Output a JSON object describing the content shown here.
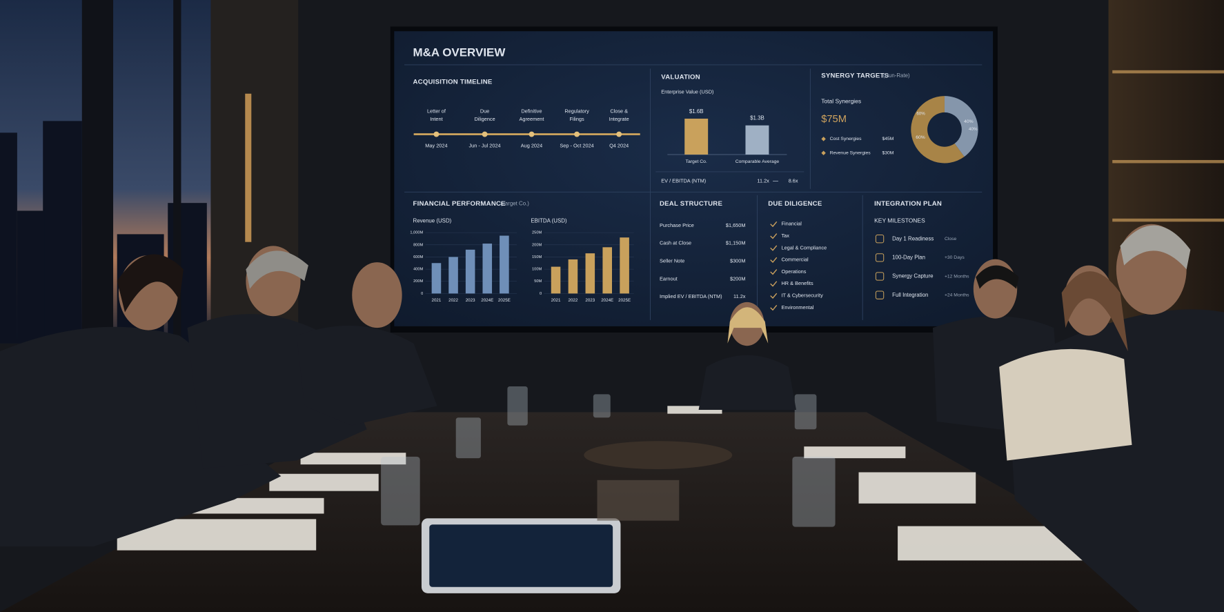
{
  "screen": {
    "title": "M&A OVERVIEW",
    "timeline": {
      "title": "ACQUISITION TIMELINE",
      "milestones": [
        {
          "label": [
            "Letter of",
            "Intent"
          ],
          "date": "May 2024"
        },
        {
          "label": [
            "Due",
            "Diligence"
          ],
          "date": "Jun - Jul 2024"
        },
        {
          "label": [
            "Definitive",
            "Agreement"
          ],
          "date": "Aug 2024"
        },
        {
          "label": [
            "Regulatory",
            "Filings"
          ],
          "date": "Sep - Oct 2024"
        },
        {
          "label": [
            "Close &",
            "Integrate"
          ],
          "date": "Q4 2024"
        }
      ]
    },
    "valuation": {
      "title": "VALUATION",
      "subtitle": "Enterprise Value (USD)",
      "chart": {
        "type": "bar",
        "categories": [
          "Target Co.",
          "Comparable Average"
        ],
        "values": [
          1.6,
          1.3
        ],
        "value_labels": [
          "$1.6B",
          "$1.3B"
        ],
        "colors": [
          "#c9a15c",
          "#9fb0c4"
        ]
      },
      "metric": {
        "label": "EV / EBITDA (NTM)",
        "values": [
          "11.2x",
          "8.6x"
        ]
      }
    },
    "synergy": {
      "title": "SYNERGY TARGETS",
      "note": "(Run-Rate)",
      "total_label": "Total Synergies",
      "total": "$75M",
      "items": [
        {
          "label": "Cost Synergies",
          "value": "$45M"
        },
        {
          "label": "Revenue Synergies",
          "value": "$30M"
        }
      ],
      "chart": {
        "type": "pie",
        "values": [
          40,
          60
        ],
        "value_labels": [
          "40%",
          "60%"
        ],
        "colors": [
          "#8596ab",
          "#a88447"
        ]
      }
    },
    "financial": {
      "title": "FINANCIAL PERFORMANCE",
      "note": "(Target Co.)",
      "charts": [
        {
          "type": "bar",
          "title": "Revenue (USD)",
          "categories": [
            "2021",
            "2022",
            "2023",
            "2024E",
            "2025E"
          ],
          "values": [
            500,
            600,
            720,
            820,
            950
          ],
          "color": "#6f8fb8",
          "ylim": [
            0,
            1000
          ],
          "yticks": [
            0,
            {
              "value": 200,
              "label": "200M"
            },
            {
              "value": 400,
              "label": "400M"
            },
            {
              "value": 600,
              "label": "600M"
            },
            {
              "value": 800,
              "label": "800M"
            },
            {
              "value": 1000,
              "label": "1,000M"
            }
          ]
        },
        {
          "type": "bar",
          "title": "EBITDA (USD)",
          "categories": [
            "2021",
            "2022",
            "2023",
            "2024E",
            "2025E"
          ],
          "values": [
            110,
            140,
            165,
            190,
            230
          ],
          "color": "#c9a15c",
          "ylim": [
            0,
            250
          ],
          "yticks": [
            0,
            {
              "value": 50,
              "label": "50M"
            },
            {
              "value": 100,
              "label": "100M"
            },
            {
              "value": 150,
              "label": "150M"
            },
            {
              "value": 200,
              "label": "200M"
            },
            {
              "value": 250,
              "label": "250M"
            }
          ]
        }
      ]
    },
    "deal_structure": {
      "title": "DEAL STRUCTURE",
      "rows": [
        [
          "Purchase Price",
          "$1,650M"
        ],
        [
          "Cash at Close",
          "$1,150M"
        ],
        [
          "Seller Note",
          "$300M"
        ],
        [
          "Earnout",
          "$200M"
        ],
        [
          "Implied EV / EBITDA (NTM)",
          "11.2x"
        ]
      ]
    },
    "due_diligence": {
      "title": "DUE DILIGENCE",
      "items": [
        "Financial",
        "Tax",
        "Legal & Compliance",
        "Commercial",
        "Operations",
        "HR & Benefits",
        "IT & Cybersecurity",
        "Environmental"
      ]
    },
    "integration": {
      "title": "INTEGRATION PLAN",
      "subtitle": "KEY MILESTONES",
      "rows": [
        [
          "Day 1 Readiness",
          "Close"
        ],
        [
          "100-Day Plan",
          "+30 Days"
        ],
        [
          "Synergy Capture",
          "+12 Months"
        ],
        [
          "Full Integration",
          "+24 Months"
        ]
      ]
    }
  }
}
